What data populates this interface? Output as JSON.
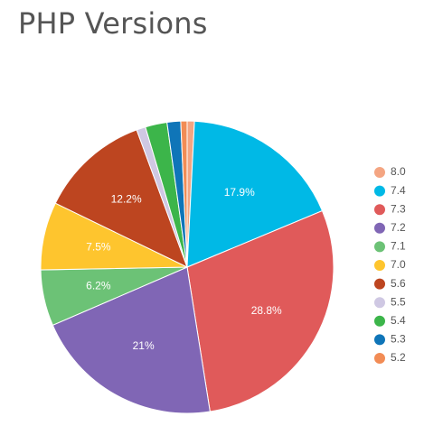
{
  "chart_data": {
    "type": "pie",
    "title": "PHP Versions",
    "legend_position": "right",
    "slices": [
      {
        "label": "8.0",
        "value": 0.8,
        "color": "#f4a582",
        "data_label": ""
      },
      {
        "label": "7.4",
        "value": 17.9,
        "color": "#00b9e6",
        "data_label": "17.9%"
      },
      {
        "label": "7.3",
        "value": 28.8,
        "color": "#e05a5a",
        "data_label": "28.8%"
      },
      {
        "label": "7.2",
        "value": 21.0,
        "color": "#8066b5",
        "data_label": "21%"
      },
      {
        "label": "7.1",
        "value": 6.2,
        "color": "#6cc276",
        "data_label": "6.2%"
      },
      {
        "label": "7.0",
        "value": 7.5,
        "color": "#fec52e",
        "data_label": "7.5%"
      },
      {
        "label": "5.6",
        "value": 12.2,
        "color": "#bd4520",
        "data_label": "12.2%"
      },
      {
        "label": "5.5",
        "value": 1.0,
        "color": "#cfc8e3",
        "data_label": ""
      },
      {
        "label": "5.4",
        "value": 2.4,
        "color": "#3cb54a",
        "data_label": ""
      },
      {
        "label": "5.3",
        "value": 1.5,
        "color": "#0f75b8",
        "data_label": ""
      },
      {
        "label": "5.2",
        "value": 0.7,
        "color": "#f28c55",
        "data_label": ""
      }
    ]
  }
}
